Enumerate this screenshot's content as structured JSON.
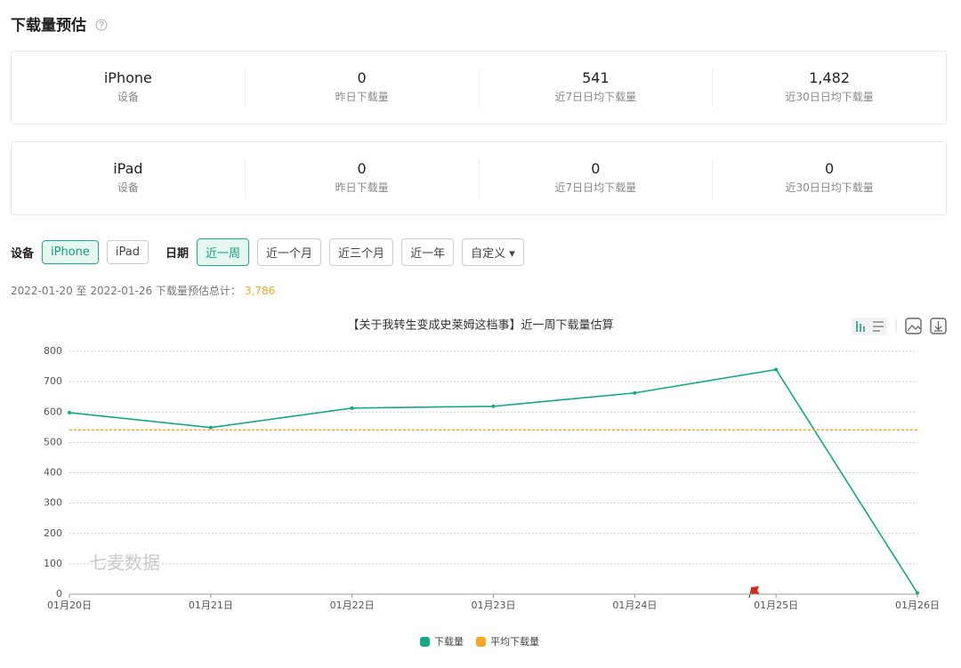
{
  "header": {
    "title": "下载量预估"
  },
  "stats": [
    [
      {
        "value": "iPhone",
        "label": "设备"
      },
      {
        "value": "0",
        "label": "昨日下载量"
      },
      {
        "value": "541",
        "label": "近7日日均下载量"
      },
      {
        "value": "1,482",
        "label": "近30日日均下载量"
      }
    ],
    [
      {
        "value": "iPad",
        "label": "设备"
      },
      {
        "value": "0",
        "label": "昨日下载量"
      },
      {
        "value": "0",
        "label": "近7日日均下载量"
      },
      {
        "value": "0",
        "label": "近30日日均下载量"
      }
    ]
  ],
  "filters": {
    "device_label": "设备",
    "devices": [
      "iPhone",
      "iPad"
    ],
    "device_selected": 0,
    "date_label": "日期",
    "ranges": [
      "近一周",
      "近一个月",
      "近三个月",
      "近一年",
      "自定义 ▾"
    ],
    "range_selected": 0
  },
  "summary": {
    "text": "2022-01-20 至 2022-01-26 下载量预估总计：",
    "total": "3,786"
  },
  "watermark": "七麦数据",
  "chart_data": {
    "type": "line",
    "title": "【关于我转生变成史莱姆这档事】近一周下载量估算",
    "categories": [
      "01月20日",
      "01月21日",
      "01月22日",
      "01月23日",
      "01月24日",
      "01月25日",
      "01月26日"
    ],
    "series": [
      {
        "name": "下载量",
        "color": "#13a985",
        "values": [
          598,
          549,
          613,
          619,
          663,
          740,
          4
        ]
      },
      {
        "name": "平均下载量",
        "color": "#f5a623",
        "values": [
          541,
          541,
          541,
          541,
          541,
          541,
          541
        ]
      }
    ],
    "ylim": [
      0,
      800
    ],
    "yticks": [
      0,
      100,
      200,
      300,
      400,
      500,
      600,
      700,
      800
    ],
    "grid": true
  }
}
